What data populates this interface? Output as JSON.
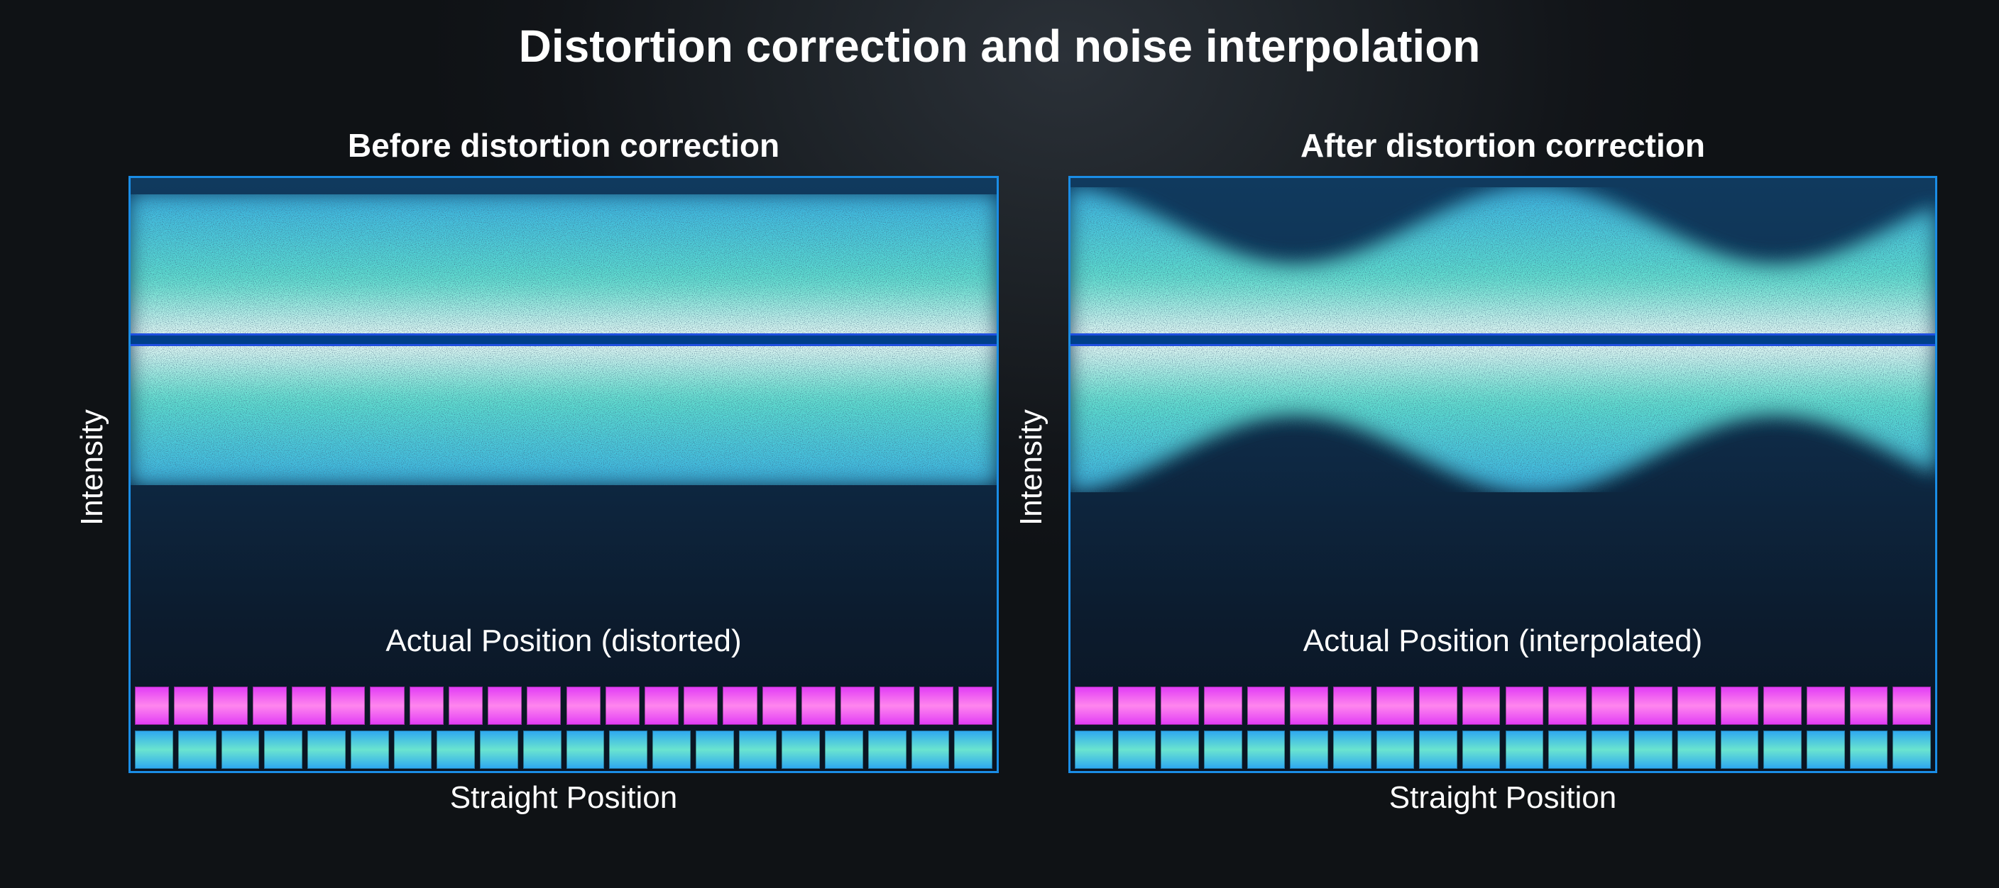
{
  "title": "Distortion correction and noise interpolation",
  "panels": [
    {
      "id": "before",
      "subtitle": "Before distortion correction",
      "y_axis_label": "Intensity",
      "position_label": "Actual Position (distorted)",
      "x_axis_label": "Straight Position",
      "band_shape": "flat",
      "pink_block_count": 22,
      "cyan_block_count": 20
    },
    {
      "id": "after",
      "subtitle": "After distortion correction",
      "y_axis_label": "Intensity",
      "position_label": "Actual Position (interpolated)",
      "x_axis_label": "Straight Position",
      "band_shape": "wavy",
      "pink_block_count": 20,
      "cyan_block_count": 20
    }
  ],
  "colors": {
    "panel_border": "#1a8de6",
    "center_line": "#003f8a",
    "band_teal": "#5fe0cf",
    "band_blue": "#3bb5e6",
    "pink_block": "#f37bf0",
    "cyan_block": "#4fcbe0"
  }
}
